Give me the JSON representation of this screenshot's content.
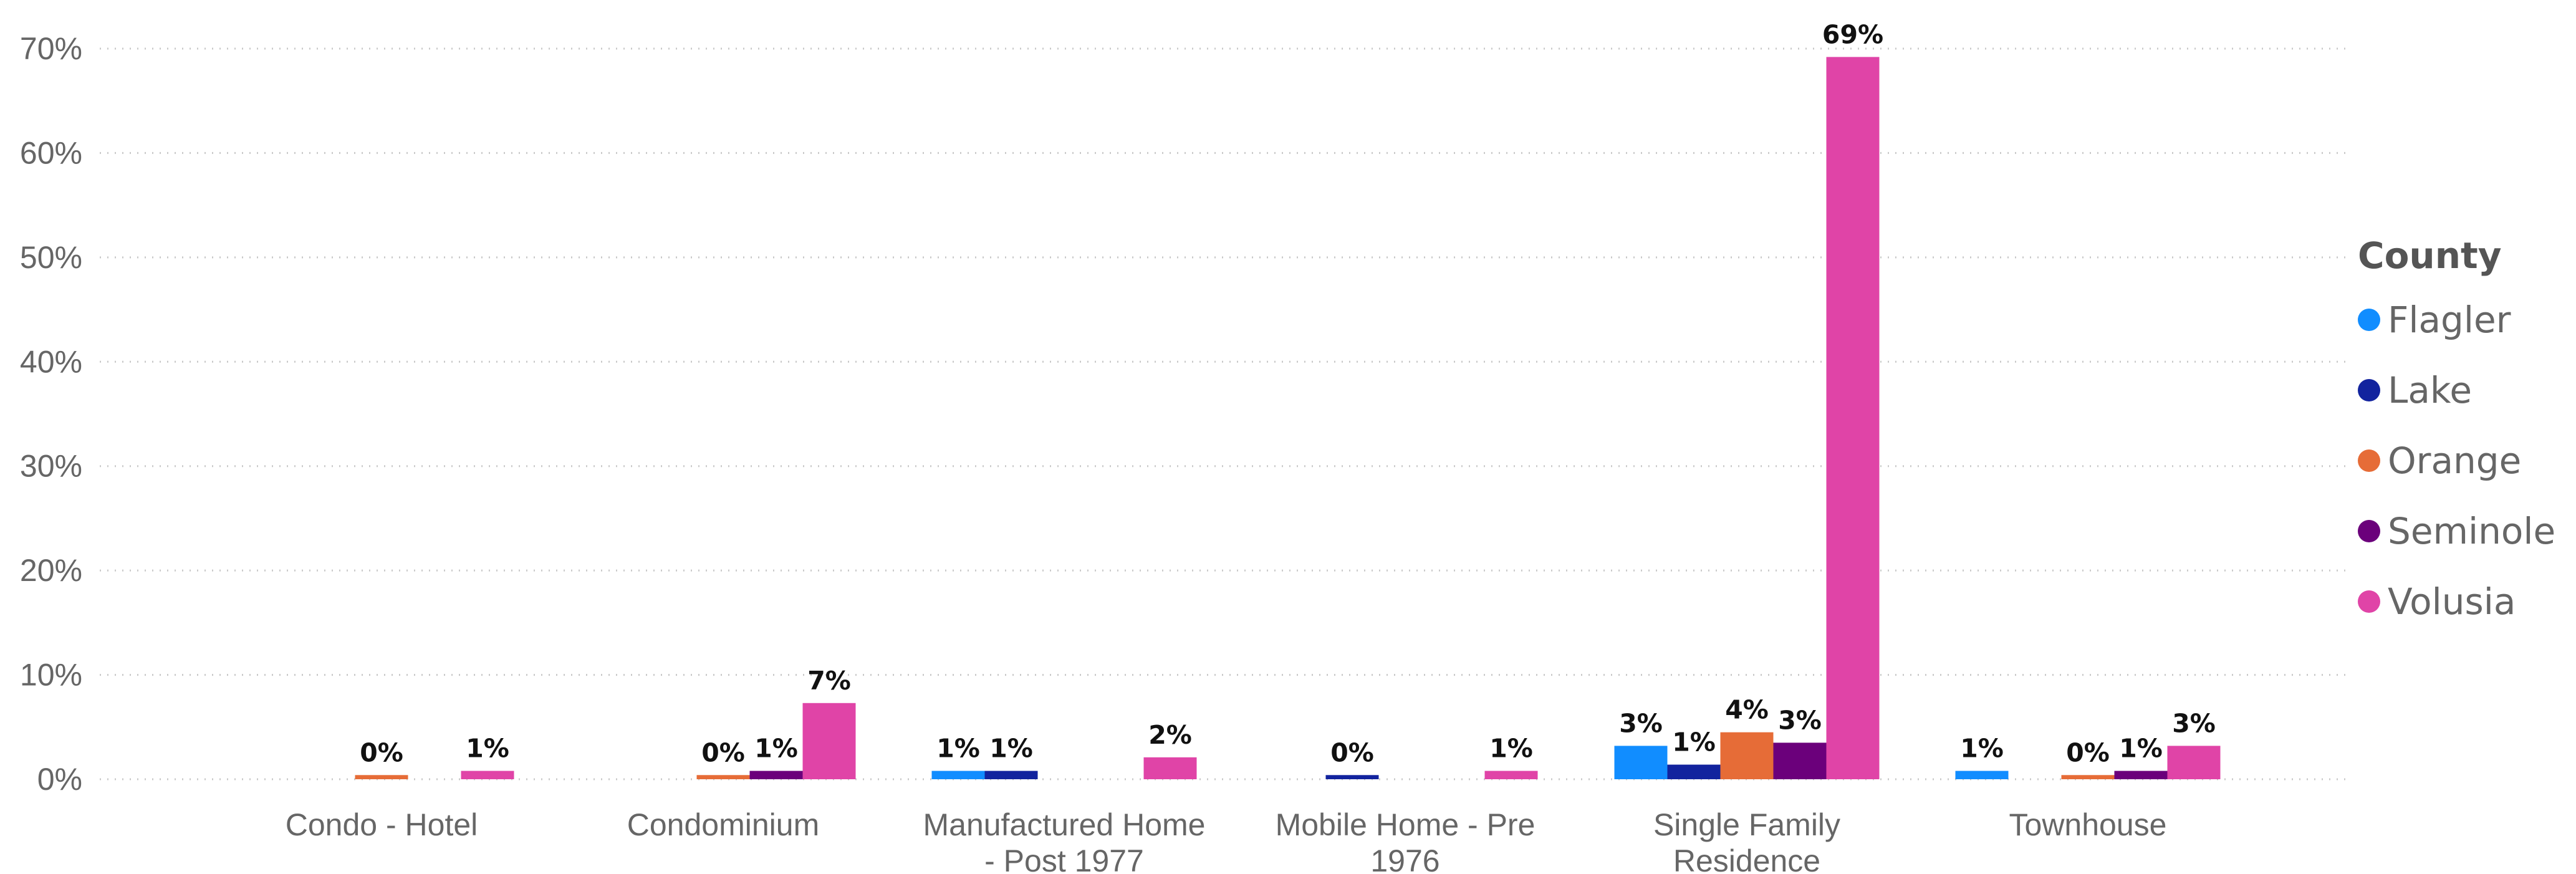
{
  "chart_data": {
    "type": "bar",
    "title": "",
    "xlabel": "",
    "ylabel": "",
    "ylim": [
      0,
      70
    ],
    "yticks": [
      "0%",
      "10%",
      "20%",
      "30%",
      "40%",
      "50%",
      "60%",
      "70%"
    ],
    "grid": true,
    "legend_position": "right",
    "legend_title": "County",
    "categories": [
      [
        "Condo - Hotel"
      ],
      [
        "Condominium"
      ],
      [
        "Manufactured Home",
        "- Post 1977"
      ],
      [
        "Mobile Home - Pre",
        "1976"
      ],
      [
        "Single Family",
        "Residence"
      ],
      [
        "Townhouse"
      ]
    ],
    "series": [
      {
        "name": "Flagler",
        "color": "#118DFF",
        "values": [
          null,
          null,
          0.8,
          null,
          3.2,
          0.8
        ],
        "labels": [
          "",
          "",
          "1%",
          "",
          "3%",
          "1%"
        ]
      },
      {
        "name": "Lake",
        "color": "#12239E",
        "values": [
          null,
          null,
          0.8,
          0.4,
          1.4,
          null
        ],
        "labels": [
          "",
          "",
          "1%",
          "0%",
          "1%",
          ""
        ]
      },
      {
        "name": "Orange",
        "color": "#E66C37",
        "values": [
          0.4,
          0.4,
          null,
          null,
          4.5,
          0.4
        ],
        "labels": [
          "0%",
          "0%",
          "",
          "",
          "4%",
          "0%"
        ]
      },
      {
        "name": "Seminole",
        "color": "#6B007B",
        "values": [
          null,
          0.8,
          null,
          null,
          3.5,
          0.8
        ],
        "labels": [
          "",
          "1%",
          "",
          "",
          "3%",
          "1%"
        ]
      },
      {
        "name": "Volusia",
        "color": "#E044A7",
        "values": [
          0.8,
          7.3,
          2.1,
          0.8,
          69.2,
          3.2
        ],
        "labels": [
          "1%",
          "7%",
          "2%",
          "1%",
          "69%",
          "3%"
        ]
      }
    ]
  }
}
